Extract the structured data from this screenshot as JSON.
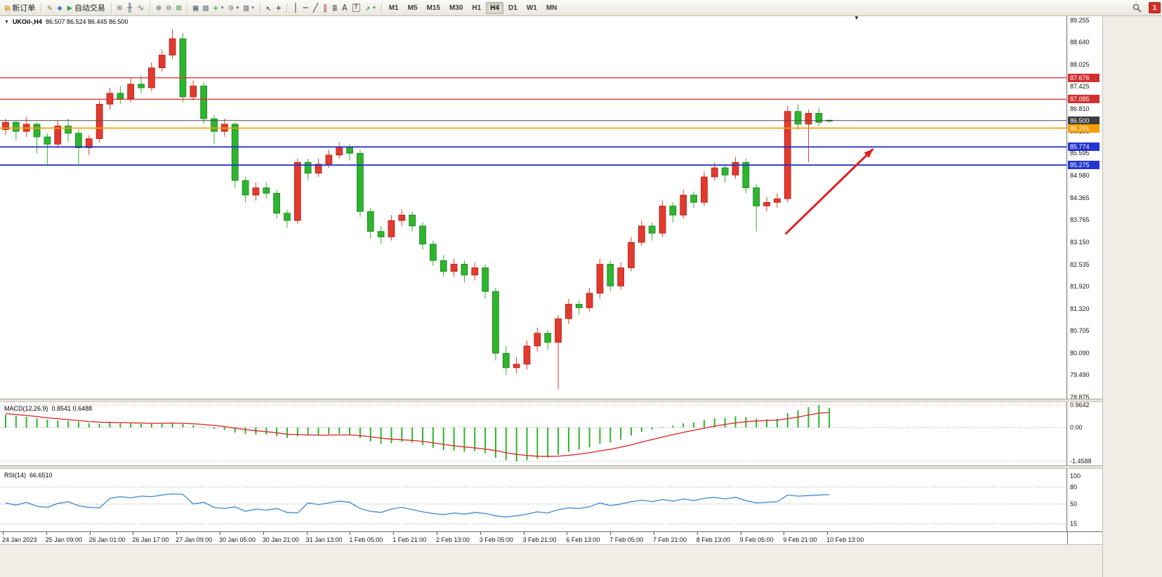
{
  "toolbar": {
    "new_order_label": "新订单",
    "autotrading_label": "自动交易",
    "alert_badge": "1",
    "items": [
      {
        "kind": "button",
        "name": "new-order-button",
        "glyph": "▤",
        "color": "#c9a227",
        "label": "新订单"
      },
      {
        "kind": "sep"
      },
      {
        "kind": "icon",
        "name": "metaeditor-button",
        "glyph": "✎",
        "color": "#8a7a2a"
      },
      {
        "kind": "icon",
        "name": "strategy-tester-button",
        "glyph": "◆",
        "color": "#4a7ebb"
      },
      {
        "kind": "button",
        "name": "autotrading-button",
        "glyph": "▶",
        "color": "#2e9e3f",
        "label": "自动交易"
      },
      {
        "kind": "sep"
      },
      {
        "kind": "icon",
        "name": "bar-chart-mode-button",
        "glyph": "≡",
        "color": "#5a6c7a",
        "rotate": true
      },
      {
        "kind": "icon",
        "name": "candlestick-mode-button",
        "glyph": "╫",
        "color": "#5a6c7a"
      },
      {
        "kind": "icon",
        "name": "line-chart-mode-button",
        "glyph": "∿",
        "color": "#5a6c7a"
      },
      {
        "kind": "sep"
      },
      {
        "kind": "icon",
        "name": "zoom-in-button",
        "glyph": "⊕",
        "color": "#5a6c7a"
      },
      {
        "kind": "icon",
        "name": "zoom-out-button",
        "glyph": "⊖",
        "color": "#5a6c7a"
      },
      {
        "kind": "icon",
        "name": "tile-windows-button",
        "glyph": "⊞",
        "color": "#3f8f3f"
      },
      {
        "kind": "sep"
      },
      {
        "kind": "icon",
        "name": "new-chart-button",
        "glyph": "▦",
        "color": "#5a6c7a"
      },
      {
        "kind": "icon",
        "name": "profiles-button",
        "glyph": "▧",
        "color": "#5a6c7a"
      },
      {
        "kind": "icon-dd",
        "name": "indicators-button",
        "glyph": "+",
        "color": "#1f9d3a"
      },
      {
        "kind": "icon-dd",
        "name": "periods-button",
        "glyph": "⊙",
        "color": "#5a6c7a"
      },
      {
        "kind": "icon-dd",
        "name": "templates-button",
        "glyph": "▥",
        "color": "#5a6c7a"
      },
      {
        "kind": "sep"
      },
      {
        "kind": "icon",
        "name": "cursor-tool-button",
        "glyph": "↖",
        "color": "#333333"
      },
      {
        "kind": "icon",
        "name": "crosshair-tool-button",
        "glyph": "+",
        "color": "#333333"
      },
      {
        "kind": "sep"
      },
      {
        "kind": "icon",
        "name": "vertical-line-tool-button",
        "glyph": "│",
        "color": "#333333"
      },
      {
        "kind": "icon",
        "name": "horizontal-line-tool-button",
        "glyph": "─",
        "color": "#333333"
      },
      {
        "kind": "icon",
        "name": "trendline-tool-button",
        "glyph": "╱",
        "color": "#333333"
      },
      {
        "kind": "icon",
        "name": "equidistant-channel-tool-button",
        "glyph": "∥",
        "color": "#a33a2e"
      },
      {
        "kind": "icon",
        "name": "fibonacci-tool-button",
        "glyph": "≣",
        "color": "#333333"
      },
      {
        "kind": "icon",
        "name": "text-tool-button",
        "glyph": "A",
        "color": "#333333"
      },
      {
        "kind": "icon",
        "name": "text-label-tool-button",
        "glyph": "T",
        "color": "#333333",
        "boxed": true
      },
      {
        "kind": "icon-dd",
        "name": "arrows-tool-button",
        "glyph": "↗",
        "color": "#1f9d3a"
      },
      {
        "kind": "sep"
      }
    ],
    "timeframes": [
      "M1",
      "M5",
      "M15",
      "M30",
      "H1",
      "H4",
      "D1",
      "W1",
      "MN"
    ],
    "active_timeframe": "H4"
  },
  "chart": {
    "collapse_marker": "▼",
    "symbol": "UKOil-,H4",
    "ohlc_values": "86.507 86.524 86.445 86.500",
    "macd_title": "MACD(12,26,9)",
    "macd_values": "0.8541 0.6488",
    "rsi_title": "RSI(14)",
    "rsi_value": "66.6510"
  },
  "chart_data": [
    {
      "type": "candlestick",
      "title": "UKOil-,H4",
      "ohlc_display": {
        "open": "86.507",
        "high": "86.524",
        "low": "86.445",
        "close": "86.500"
      },
      "bull_color": "#e23a2e",
      "bull_border": "#a81f17",
      "bear_color": "#2eb52e",
      "bear_border": "#1b7a1f",
      "ylim": [
        78.9,
        89.4
      ],
      "y_ticks": [
        "89.255",
        "88.640",
        "88.025",
        "87.425",
        "86.810",
        "86.195",
        "85.595",
        "84.980",
        "84.365",
        "83.765",
        "83.150",
        "82.535",
        "81.920",
        "81.320",
        "80.705",
        "80.090",
        "79.490",
        "78.875"
      ],
      "x_labels": [
        "24 Jan 2023",
        "25 Jan 09:00",
        "26 Jan 01:00",
        "26 Jan 17:00",
        "27 Jan 09:00",
        "30 Jan 05:00",
        "30 Jan 21:00",
        "31 Jan 13:00",
        "1 Feb 05:00",
        "1 Feb 21:00",
        "2 Feb 13:00",
        "3 Feb 05:00",
        "3 Feb 21:00",
        "6 Feb 13:00",
        "7 Feb 05:00",
        "7 Feb 21:00",
        "8 Feb 13:00",
        "9 Feb 05:00",
        "9 Feb 21:00",
        "10 Feb 13:00"
      ],
      "hlines": [
        {
          "value": 87.676,
          "color": "#e03434",
          "width": 1.4,
          "badge": "87.676",
          "badge_bg": "#d32f2f"
        },
        {
          "value": 87.085,
          "color": "#e03434",
          "width": 1.4,
          "badge": "87.085",
          "badge_bg": "#d32f2f"
        },
        {
          "value": 86.5,
          "color": "#4a4a4a",
          "width": 1,
          "badge": "86.500",
          "badge_bg": "#3c3c3c"
        },
        {
          "value": 86.291,
          "color": "#f59d00",
          "width": 1.8,
          "badge": "86.291",
          "badge_bg": "#f59d00"
        },
        {
          "value": 85.774,
          "color": "#2334d0",
          "width": 1.8,
          "badge": "85.774",
          "badge_bg": "#2334d0"
        },
        {
          "value": 85.275,
          "color": "#2334d0",
          "width": 1.8,
          "badge": "85.275",
          "badge_bg": "#2334d0"
        }
      ],
      "annotation_arrow": {
        "from_bar": 74.8,
        "from_price": 83.38,
        "to_bar": 83.2,
        "to_price": 85.72,
        "color": "#dd2020",
        "width": 3
      },
      "candles": [
        [
          86.25,
          86.55,
          86.1,
          86.45
        ],
        [
          86.45,
          86.5,
          85.95,
          86.2
        ],
        [
          86.2,
          86.6,
          86.05,
          86.4
        ],
        [
          86.4,
          86.45,
          85.6,
          86.05
        ],
        [
          86.05,
          86.15,
          85.3,
          85.85
        ],
        [
          85.85,
          86.5,
          85.75,
          86.35
        ],
        [
          86.35,
          86.55,
          85.9,
          86.15
        ],
        [
          86.15,
          86.25,
          85.3,
          85.75
        ],
        [
          85.75,
          86.1,
          85.55,
          86.0
        ],
        [
          86.0,
          87.05,
          85.9,
          86.95
        ],
        [
          86.95,
          87.4,
          86.8,
          87.25
        ],
        [
          87.25,
          87.45,
          86.95,
          87.1
        ],
        [
          87.1,
          87.65,
          87.0,
          87.5
        ],
        [
          87.5,
          87.75,
          87.25,
          87.4
        ],
        [
          87.4,
          88.1,
          87.3,
          87.95
        ],
        [
          87.95,
          88.45,
          87.85,
          88.3
        ],
        [
          88.3,
          89.0,
          88.2,
          88.75
        ],
        [
          88.75,
          88.9,
          87.0,
          87.15
        ],
        [
          87.15,
          87.6,
          87.05,
          87.45
        ],
        [
          87.45,
          87.55,
          86.4,
          86.55
        ],
        [
          86.55,
          86.65,
          85.85,
          86.2
        ],
        [
          86.2,
          86.55,
          86.05,
          86.4
        ],
        [
          86.4,
          86.45,
          84.65,
          84.85
        ],
        [
          84.85,
          84.95,
          84.25,
          84.45
        ],
        [
          84.45,
          84.8,
          84.3,
          84.65
        ],
        [
          84.65,
          84.8,
          84.35,
          84.5
        ],
        [
          84.5,
          84.6,
          83.8,
          83.95
        ],
        [
          83.95,
          84.05,
          83.55,
          83.75
        ],
        [
          83.75,
          85.45,
          83.65,
          85.35
        ],
        [
          85.35,
          85.45,
          84.85,
          85.05
        ],
        [
          85.05,
          85.45,
          84.95,
          85.3
        ],
        [
          85.3,
          85.7,
          85.2,
          85.55
        ],
        [
          85.55,
          85.9,
          85.45,
          85.75
        ],
        [
          85.75,
          85.85,
          85.4,
          85.6
        ],
        [
          85.6,
          85.7,
          83.85,
          84.0
        ],
        [
          84.0,
          84.1,
          83.25,
          83.45
        ],
        [
          83.45,
          83.6,
          83.1,
          83.3
        ],
        [
          83.3,
          83.9,
          83.2,
          83.75
        ],
        [
          83.75,
          84.05,
          83.6,
          83.9
        ],
        [
          83.9,
          84.0,
          83.45,
          83.6
        ],
        [
          83.6,
          83.7,
          82.95,
          83.1
        ],
        [
          83.1,
          83.2,
          82.5,
          82.65
        ],
        [
          82.65,
          82.8,
          82.2,
          82.35
        ],
        [
          82.35,
          82.7,
          82.2,
          82.55
        ],
        [
          82.55,
          82.65,
          82.05,
          82.25
        ],
        [
          82.25,
          82.6,
          82.1,
          82.45
        ],
        [
          82.45,
          82.55,
          81.6,
          81.8
        ],
        [
          81.8,
          81.9,
          79.9,
          80.1
        ],
        [
          80.1,
          80.3,
          79.5,
          79.7
        ],
        [
          79.7,
          80.0,
          79.55,
          79.8
        ],
        [
          79.8,
          80.45,
          79.65,
          80.3
        ],
        [
          80.3,
          80.8,
          80.15,
          80.65
        ],
        [
          80.65,
          80.75,
          80.2,
          80.4
        ],
        [
          80.4,
          81.15,
          79.1,
          81.05
        ],
        [
          81.05,
          81.6,
          80.9,
          81.45
        ],
        [
          81.45,
          81.55,
          81.15,
          81.35
        ],
        [
          81.35,
          81.9,
          81.25,
          81.75
        ],
        [
          81.75,
          82.7,
          81.6,
          82.55
        ],
        [
          82.55,
          82.65,
          81.8,
          81.95
        ],
        [
          81.95,
          82.6,
          81.85,
          82.45
        ],
        [
          82.45,
          83.3,
          82.35,
          83.15
        ],
        [
          83.15,
          83.75,
          83.05,
          83.6
        ],
        [
          83.6,
          83.7,
          83.2,
          83.4
        ],
        [
          83.4,
          84.3,
          83.3,
          84.15
        ],
        [
          84.15,
          84.25,
          83.7,
          83.9
        ],
        [
          83.9,
          84.6,
          83.8,
          84.45
        ],
        [
          84.45,
          84.55,
          84.1,
          84.25
        ],
        [
          84.25,
          85.1,
          84.15,
          84.95
        ],
        [
          84.95,
          85.35,
          84.85,
          85.2
        ],
        [
          85.2,
          85.3,
          84.8,
          85.0
        ],
        [
          85.0,
          85.5,
          84.9,
          85.35
        ],
        [
          85.35,
          85.45,
          84.5,
          84.65
        ],
        [
          84.65,
          84.75,
          83.45,
          84.15
        ],
        [
          84.15,
          84.4,
          84.0,
          84.25
        ],
        [
          84.25,
          84.5,
          84.1,
          84.35
        ],
        [
          84.35,
          86.9,
          84.25,
          86.75
        ],
        [
          86.75,
          86.95,
          86.25,
          86.4
        ],
        [
          86.4,
          86.8,
          85.35,
          86.7
        ],
        [
          86.7,
          86.85,
          86.35,
          86.45
        ],
        [
          86.51,
          86.52,
          86.44,
          86.5
        ]
      ]
    },
    {
      "type": "bar",
      "title": "MACD(12,26,9)",
      "display_values": "0.8541 0.6488",
      "hist_color": "#2eb52e",
      "signal_color": "#e03030",
      "y_ticks": [
        "0.9642",
        "0.00",
        "-1.4588"
      ],
      "histogram": [
        0.55,
        0.5,
        0.46,
        0.4,
        0.34,
        0.3,
        0.28,
        0.24,
        0.18,
        0.16,
        0.2,
        0.18,
        0.17,
        0.15,
        0.16,
        0.18,
        0.2,
        0.15,
        0.1,
        0.02,
        -0.06,
        -0.1,
        -0.22,
        -0.28,
        -0.3,
        -0.3,
        -0.38,
        -0.45,
        -0.38,
        -0.35,
        -0.33,
        -0.3,
        -0.28,
        -0.3,
        -0.45,
        -0.6,
        -0.7,
        -0.68,
        -0.62,
        -0.65,
        -0.75,
        -0.88,
        -0.98,
        -1.0,
        -1.05,
        -1.02,
        -1.1,
        -1.3,
        -1.42,
        -1.4588,
        -1.42,
        -1.35,
        -1.3,
        -1.18,
        -1.05,
        -0.95,
        -0.85,
        -0.7,
        -0.65,
        -0.52,
        -0.35,
        -0.18,
        -0.1,
        0.02,
        0.08,
        0.18,
        0.22,
        0.32,
        0.4,
        0.42,
        0.48,
        0.45,
        0.38,
        0.36,
        0.38,
        0.62,
        0.75,
        0.88,
        0.9642,
        0.8541
      ],
      "signal": [
        0.6,
        0.56,
        0.52,
        0.47,
        0.42,
        0.38,
        0.34,
        0.3,
        0.26,
        0.23,
        0.22,
        0.21,
        0.2,
        0.19,
        0.18,
        0.18,
        0.19,
        0.18,
        0.16,
        0.13,
        0.09,
        0.04,
        -0.03,
        -0.09,
        -0.14,
        -0.18,
        -0.23,
        -0.29,
        -0.31,
        -0.32,
        -0.33,
        -0.33,
        -0.32,
        -0.32,
        -0.35,
        -0.4,
        -0.46,
        -0.5,
        -0.53,
        -0.56,
        -0.6,
        -0.66,
        -0.73,
        -0.79,
        -0.84,
        -0.88,
        -0.93,
        -1.0,
        -1.09,
        -1.16,
        -1.21,
        -1.24,
        -1.25,
        -1.24,
        -1.2,
        -1.15,
        -1.09,
        -1.01,
        -0.94,
        -0.85,
        -0.75,
        -0.63,
        -0.52,
        -0.41,
        -0.31,
        -0.21,
        -0.12,
        -0.03,
        0.06,
        0.13,
        0.2,
        0.25,
        0.28,
        0.3,
        0.32,
        0.38,
        0.45,
        0.54,
        0.62,
        0.6488
      ]
    },
    {
      "type": "line",
      "title": "RSI(14)",
      "display_value": "66.6510",
      "line_color": "#4a8fd4",
      "levels": [
        80,
        50,
        15
      ],
      "y_ticks": [
        "100",
        "80",
        "50",
        "15"
      ],
      "values": [
        52,
        48,
        53,
        46,
        44,
        51,
        54,
        47,
        44,
        43,
        60,
        63,
        61,
        64,
        63,
        66,
        68,
        67,
        50,
        53,
        44,
        42,
        45,
        37,
        41,
        39,
        42,
        35,
        34,
        52,
        49,
        52,
        55,
        53,
        42,
        37,
        35,
        41,
        44,
        40,
        36,
        33,
        31,
        34,
        32,
        35,
        33,
        29,
        27,
        29,
        32,
        36,
        34,
        40,
        43,
        42,
        45,
        52,
        47,
        50,
        54,
        57,
        54,
        58,
        55,
        59,
        56,
        60,
        62,
        59,
        62,
        56,
        52,
        53,
        54,
        66,
        64,
        65,
        66,
        66.651
      ]
    }
  ]
}
